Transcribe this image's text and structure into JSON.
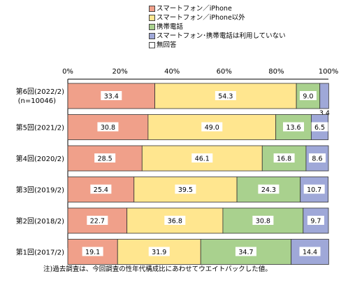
{
  "legend": [
    {
      "label": "スマートフォン／iPhone",
      "color": "#f0a08a"
    },
    {
      "label": "スマートフォン／iPhone以外",
      "color": "#ffe68f"
    },
    {
      "label": "携帯電話",
      "color": "#a9d18e"
    },
    {
      "label": "スマートフォン･携帯電話は利用していない",
      "color": "#9fa8d8"
    },
    {
      "label": "無回答",
      "color": "#ffffff"
    }
  ],
  "note": "注)過去調査は、今回調査の性年代構成比にあわせてウエイトバックした値。",
  "chart_data": {
    "type": "bar",
    "orientation": "horizontal",
    "stacked": true,
    "xlim": [
      0,
      100
    ],
    "x_ticks": [
      "0%",
      "20%",
      "40%",
      "60%",
      "80%",
      "100%"
    ],
    "categories": [
      {
        "line1": "第6回(2022/2)",
        "line2": "(n=10046)"
      },
      {
        "line1": "第5回(2021/2)",
        "line2": ""
      },
      {
        "line1": "第4回(2020/2)",
        "line2": ""
      },
      {
        "line1": "第3回(2019/2)",
        "line2": ""
      },
      {
        "line1": "第2回(2018/2)",
        "line2": ""
      },
      {
        "line1": "第1回(2017/2)",
        "line2": ""
      }
    ],
    "series": [
      {
        "name": "スマートフォン／iPhone",
        "color": "#f0a08a",
        "values": [
          33.4,
          30.8,
          28.5,
          25.4,
          22.7,
          19.1
        ]
      },
      {
        "name": "スマートフォン／iPhone以外",
        "color": "#ffe68f",
        "values": [
          54.3,
          49.0,
          46.1,
          39.5,
          36.8,
          31.9
        ]
      },
      {
        "name": "携帯電話",
        "color": "#a9d18e",
        "values": [
          9.0,
          13.6,
          16.8,
          24.3,
          30.8,
          34.7
        ]
      },
      {
        "name": "スマートフォン･携帯電話は利用していない",
        "color": "#9fa8d8",
        "values": [
          3.4,
          6.5,
          8.6,
          10.7,
          9.7,
          14.4
        ]
      },
      {
        "name": "無回答",
        "color": "#ffffff",
        "values": [
          0,
          0,
          0,
          0,
          0,
          0
        ]
      }
    ],
    "value_labels": [
      [
        "33.4",
        "54.3",
        "9.0",
        "3.4"
      ],
      [
        "30.8",
        "49.0",
        "13.6",
        "6.5"
      ],
      [
        "28.5",
        "46.1",
        "16.8",
        "8.6"
      ],
      [
        "25.4",
        "39.5",
        "24.3",
        "10.7"
      ],
      [
        "22.7",
        "36.8",
        "30.8",
        "9.7"
      ],
      [
        "19.1",
        "31.9",
        "34.7",
        "14.4"
      ]
    ],
    "grid": false
  }
}
